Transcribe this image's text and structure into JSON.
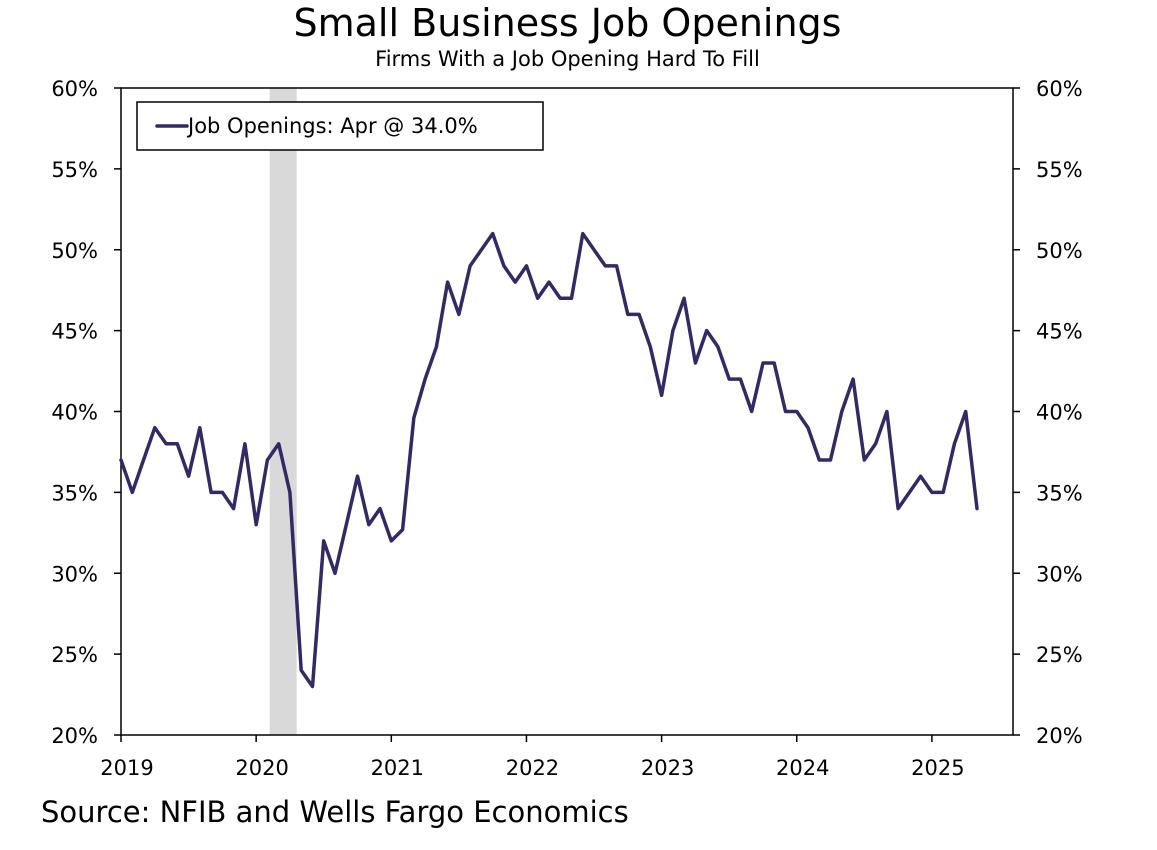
{
  "chart_data": {
    "type": "line",
    "title": "Small Business Job Openings",
    "subtitle": "Firms With a Job Opening Hard To Fill",
    "source": "Source: NFIB and Wells Fargo Economics",
    "ylim": [
      20,
      60
    ],
    "y_ticks": [
      20,
      25,
      30,
      35,
      40,
      45,
      50,
      55,
      60
    ],
    "y_tick_labels": [
      "20%",
      "25%",
      "30%",
      "35%",
      "40%",
      "45%",
      "50%",
      "55%",
      "60%"
    ],
    "x_range": [
      2019.0,
      2025.6
    ],
    "x_ticks": [
      2019,
      2020,
      2021,
      2022,
      2023,
      2024,
      2025
    ],
    "x_tick_labels": [
      "2019",
      "2020",
      "2021",
      "2022",
      "2023",
      "2024",
      "2025"
    ],
    "recession": {
      "start": 2020.1,
      "end": 2020.3,
      "color": "#d9d9d9"
    },
    "legend": {
      "label": "Job Openings: Apr @ 34.0%",
      "location": "top-left"
    },
    "series": [
      {
        "name": "Job Openings",
        "color": "#312a64",
        "start_year": 2019,
        "start_month": 1,
        "values": [
          37,
          35,
          37,
          39,
          38,
          38,
          36,
          39,
          35,
          35,
          34,
          38,
          33,
          37,
          38,
          35,
          24,
          23,
          32,
          30,
          33,
          36,
          33,
          34,
          32,
          32.7,
          39.6,
          42,
          44,
          48,
          46,
          49,
          50,
          51,
          49,
          48,
          49,
          47,
          48,
          47,
          47,
          51,
          50,
          49,
          49,
          46,
          46,
          44,
          41,
          45,
          47,
          43,
          45,
          44,
          42,
          42,
          40,
          43,
          43,
          40,
          40,
          39,
          37,
          37,
          40,
          42,
          37,
          38,
          40,
          34,
          35,
          36,
          35,
          35,
          38,
          40,
          34
        ]
      }
    ]
  }
}
